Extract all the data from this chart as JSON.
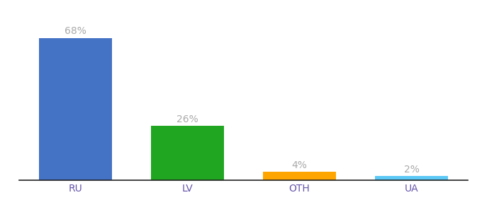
{
  "categories": [
    "RU",
    "LV",
    "OTH",
    "UA"
  ],
  "values": [
    68,
    26,
    4,
    2
  ],
  "labels": [
    "68%",
    "26%",
    "4%",
    "2%"
  ],
  "bar_colors": [
    "#4472C4",
    "#21A621",
    "#FFA500",
    "#5BC8F5"
  ],
  "background_color": "#ffffff",
  "label_color": "#aaaaaa",
  "label_fontsize": 10,
  "tick_fontsize": 10,
  "tick_color": "#6655aa",
  "ylim": [
    0,
    78
  ],
  "bar_width": 0.65
}
